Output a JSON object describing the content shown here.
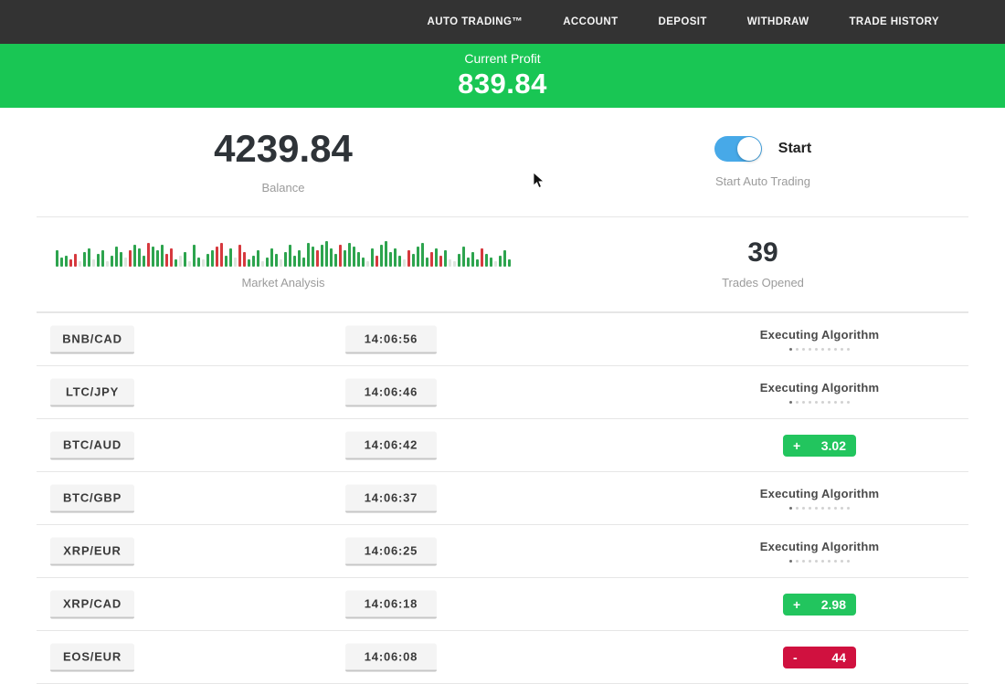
{
  "nav": {
    "items": [
      "AUTO TRADING™",
      "ACCOUNT",
      "DEPOSIT",
      "WITHDRAW",
      "TRADE HISTORY"
    ]
  },
  "banner": {
    "label": "Current Profit",
    "value": "839.84",
    "bg_color": "#19c654"
  },
  "stats": {
    "balance": {
      "value": "4239.84",
      "label": "Balance"
    },
    "auto_trading": {
      "toggle_label": "Start",
      "label": "Start Auto Trading",
      "enabled": true
    },
    "market_analysis": {
      "label": "Market Analysis"
    },
    "trades_opened": {
      "value": "39",
      "label": "Trades Opened"
    }
  },
  "chart_data": {
    "type": "bar",
    "title": "Market Analysis",
    "legend": false,
    "axes": false,
    "palette": {
      "g": "#2da44e",
      "r": "#d6393e",
      "l": "#dde4dd"
    },
    "bars": [
      [
        18,
        "g"
      ],
      [
        10,
        "g"
      ],
      [
        12,
        "g"
      ],
      [
        8,
        "r"
      ],
      [
        14,
        "r"
      ],
      [
        6,
        "l"
      ],
      [
        16,
        "g"
      ],
      [
        20,
        "g"
      ],
      [
        8,
        "l"
      ],
      [
        14,
        "g"
      ],
      [
        18,
        "g"
      ],
      [
        6,
        "l"
      ],
      [
        12,
        "g"
      ],
      [
        22,
        "g"
      ],
      [
        16,
        "g"
      ],
      [
        10,
        "l"
      ],
      [
        18,
        "r"
      ],
      [
        24,
        "g"
      ],
      [
        20,
        "g"
      ],
      [
        12,
        "g"
      ],
      [
        26,
        "r"
      ],
      [
        22,
        "g"
      ],
      [
        18,
        "g"
      ],
      [
        24,
        "g"
      ],
      [
        14,
        "r"
      ],
      [
        20,
        "r"
      ],
      [
        8,
        "g"
      ],
      [
        12,
        "l"
      ],
      [
        16,
        "g"
      ],
      [
        6,
        "l"
      ],
      [
        24,
        "g"
      ],
      [
        10,
        "g"
      ],
      [
        8,
        "l"
      ],
      [
        14,
        "g"
      ],
      [
        18,
        "g"
      ],
      [
        22,
        "r"
      ],
      [
        26,
        "r"
      ],
      [
        12,
        "g"
      ],
      [
        20,
        "g"
      ],
      [
        10,
        "l"
      ],
      [
        24,
        "r"
      ],
      [
        16,
        "r"
      ],
      [
        8,
        "g"
      ],
      [
        12,
        "g"
      ],
      [
        18,
        "g"
      ],
      [
        6,
        "l"
      ],
      [
        10,
        "g"
      ],
      [
        20,
        "g"
      ],
      [
        14,
        "g"
      ],
      [
        8,
        "l"
      ],
      [
        16,
        "g"
      ],
      [
        24,
        "g"
      ],
      [
        12,
        "g"
      ],
      [
        18,
        "g"
      ],
      [
        10,
        "g"
      ],
      [
        26,
        "g"
      ],
      [
        22,
        "g"
      ],
      [
        18,
        "r"
      ],
      [
        24,
        "g"
      ],
      [
        28,
        "g"
      ],
      [
        20,
        "g"
      ],
      [
        14,
        "g"
      ],
      [
        24,
        "r"
      ],
      [
        18,
        "g"
      ],
      [
        26,
        "g"
      ],
      [
        22,
        "g"
      ],
      [
        16,
        "g"
      ],
      [
        10,
        "g"
      ],
      [
        6,
        "l"
      ],
      [
        20,
        "g"
      ],
      [
        12,
        "r"
      ],
      [
        24,
        "g"
      ],
      [
        28,
        "g"
      ],
      [
        16,
        "g"
      ],
      [
        20,
        "g"
      ],
      [
        12,
        "g"
      ],
      [
        8,
        "l"
      ],
      [
        18,
        "r"
      ],
      [
        14,
        "g"
      ],
      [
        22,
        "g"
      ],
      [
        26,
        "g"
      ],
      [
        10,
        "g"
      ],
      [
        16,
        "r"
      ],
      [
        20,
        "g"
      ],
      [
        12,
        "r"
      ],
      [
        18,
        "g"
      ],
      [
        8,
        "l"
      ],
      [
        6,
        "l"
      ],
      [
        14,
        "g"
      ],
      [
        22,
        "g"
      ],
      [
        10,
        "g"
      ],
      [
        16,
        "g"
      ],
      [
        8,
        "g"
      ],
      [
        20,
        "r"
      ],
      [
        14,
        "g"
      ],
      [
        10,
        "g"
      ],
      [
        6,
        "l"
      ],
      [
        12,
        "g"
      ],
      [
        18,
        "g"
      ],
      [
        8,
        "g"
      ]
    ]
  },
  "table": {
    "dots_count": 10,
    "dots_active_index": 0,
    "rows": [
      {
        "pair": "BNB/CAD",
        "time": "14:06:56",
        "status": "executing",
        "status_label": "Executing Algorithm"
      },
      {
        "pair": "LTC/JPY",
        "time": "14:06:46",
        "status": "executing",
        "status_label": "Executing Algorithm"
      },
      {
        "pair": "BTC/AUD",
        "time": "14:06:42",
        "status": "profit",
        "sign": "+",
        "amount": "3.02"
      },
      {
        "pair": "BTC/GBP",
        "time": "14:06:37",
        "status": "executing",
        "status_label": "Executing Algorithm"
      },
      {
        "pair": "XRP/EUR",
        "time": "14:06:25",
        "status": "executing",
        "status_label": "Executing Algorithm"
      },
      {
        "pair": "XRP/CAD",
        "time": "14:06:18",
        "status": "profit",
        "sign": "+",
        "amount": "2.98"
      },
      {
        "pair": "EOS/EUR",
        "time": "14:06:08",
        "status": "loss",
        "sign": "-",
        "amount": "44"
      }
    ]
  },
  "colors": {
    "nav_bg": "#333333",
    "banner_green": "#19c654",
    "toggle_blue": "#47a9e8",
    "profit_badge": "#22c55e",
    "loss_badge": "#d0113f"
  }
}
